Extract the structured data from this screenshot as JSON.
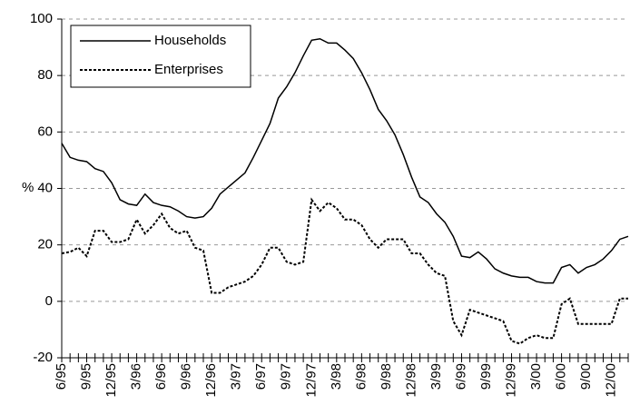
{
  "chart_data": {
    "type": "line",
    "y_axis_label": "%",
    "categories": [
      "6/95",
      null,
      null,
      "9/95",
      null,
      null,
      "12/95",
      null,
      null,
      "3/96",
      null,
      null,
      "6/96",
      null,
      null,
      "9/96",
      null,
      null,
      "12/96",
      null,
      null,
      "3/97",
      null,
      null,
      "6/97",
      null,
      null,
      "9/97",
      null,
      null,
      "12/97",
      null,
      null,
      "3/98",
      null,
      null,
      "6/98",
      null,
      null,
      "9/98",
      null,
      null,
      "12/98",
      null,
      null,
      "3/99",
      null,
      null,
      "6/99",
      null,
      null,
      "9/99",
      null,
      null,
      "12/99",
      null,
      null,
      "3/00",
      null,
      null,
      "6/00",
      null,
      null,
      "9/00",
      null,
      null,
      "12/00",
      null,
      null
    ],
    "series": [
      {
        "name": "Households",
        "color": "#000000",
        "dash": "solid",
        "values": [
          56,
          51,
          50,
          49.5,
          47,
          46,
          42,
          36,
          34.5,
          34,
          38,
          35,
          34,
          33.5,
          32,
          30,
          29.5,
          30,
          33,
          38,
          40.5,
          43,
          45.5,
          51,
          57,
          63,
          72,
          76,
          81,
          87,
          92.5,
          93,
          91.5,
          91.5,
          89,
          86,
          81,
          75,
          68,
          64,
          59,
          52,
          44,
          37,
          35,
          31,
          28,
          23,
          16,
          15.5,
          17.5,
          15,
          11.5,
          10,
          9,
          8.5,
          8.5,
          7,
          6.5,
          6.5,
          12,
          13,
          10,
          12,
          13,
          15,
          18,
          22,
          23
        ]
      },
      {
        "name": "Enterprises",
        "color": "#000000",
        "dash": "dotted",
        "values": [
          17,
          17.5,
          19,
          16,
          25,
          25,
          21,
          21,
          22,
          29,
          24,
          27,
          31,
          26,
          24,
          25,
          19,
          18,
          3,
          3,
          5,
          6,
          7,
          9,
          13,
          19,
          19,
          14,
          13,
          14,
          36,
          32,
          35,
          33,
          29,
          29,
          27,
          22,
          19,
          22,
          22,
          22,
          17,
          17,
          13,
          10,
          9,
          -7,
          -12,
          -3,
          -4,
          -5,
          -6,
          -7,
          -14,
          -15,
          -13,
          -12,
          -13,
          -13,
          -1,
          1,
          -8,
          -8,
          -8,
          -8,
          -8,
          1,
          1
        ]
      }
    ],
    "ylim": [
      -20,
      100
    ],
    "yticks": [
      -20,
      0,
      20,
      40,
      60,
      80,
      100
    ],
    "grid": true,
    "legend": "top-left"
  }
}
